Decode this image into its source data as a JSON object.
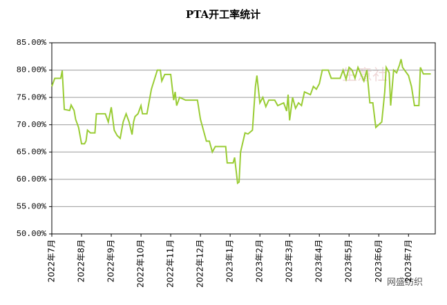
{
  "chart_data": {
    "type": "line",
    "title": "PTA开工率统计",
    "watermark": "网盛纺织",
    "logo_text": "生意社",
    "xlim": [
      0,
      12.9
    ],
    "xticks": [
      {
        "value": 0,
        "label": "2022年7月"
      },
      {
        "value": 1,
        "label": "2022年8月"
      },
      {
        "value": 2,
        "label": "2022年9月"
      },
      {
        "value": 3,
        "label": "2022年10月"
      },
      {
        "value": 4,
        "label": "2022年11月"
      },
      {
        "value": 5,
        "label": "2022年12月"
      },
      {
        "value": 6,
        "label": "2023年1月"
      },
      {
        "value": 7,
        "label": "2023年2月"
      },
      {
        "value": 8,
        "label": "2023年3月"
      },
      {
        "value": 9,
        "label": "2023年4月"
      },
      {
        "value": 10,
        "label": "2023年5月"
      },
      {
        "value": 11,
        "label": "2023年6月"
      },
      {
        "value": 12,
        "label": "2023年7月"
      }
    ],
    "ylim": [
      50,
      85
    ],
    "yticks": [
      {
        "value": 50,
        "label": "50.00%"
      },
      {
        "value": 55,
        "label": "55.00%"
      },
      {
        "value": 60,
        "label": "60.00%"
      },
      {
        "value": 65,
        "label": "65.00%"
      },
      {
        "value": 70,
        "label": "70.00%"
      },
      {
        "value": 75,
        "label": "75.00%"
      },
      {
        "value": 80,
        "label": "80.00%"
      },
      {
        "value": 85,
        "label": "85.00%"
      }
    ],
    "grid": true,
    "x": [
      0,
      0.1,
      0.3,
      0.35,
      0.42,
      0.6,
      0.65,
      0.75,
      0.8,
      0.9,
      1.0,
      1.1,
      1.15,
      1.2,
      1.3,
      1.45,
      1.5,
      1.8,
      1.9,
      2.0,
      2.1,
      2.2,
      2.3,
      2.4,
      2.5,
      2.6,
      2.7,
      2.75,
      2.8,
      2.9,
      3.0,
      3.05,
      3.2,
      3.35,
      3.55,
      3.65,
      3.7,
      3.8,
      4.0,
      4.1,
      4.15,
      4.2,
      4.3,
      4.5,
      4.9,
      5.0,
      5.1,
      5.2,
      5.3,
      5.4,
      5.5,
      5.85,
      5.9,
      6.1,
      6.15,
      6.25,
      6.3,
      6.35,
      6.5,
      6.6,
      6.75,
      6.85,
      6.9,
      7.0,
      7.1,
      7.2,
      7.3,
      7.5,
      7.6,
      7.8,
      7.9,
      7.95,
      8.0,
      8.1,
      8.2,
      8.3,
      8.4,
      8.5,
      8.7,
      8.8,
      8.9,
      9.0,
      9.1,
      9.3,
      9.4,
      9.7,
      9.8,
      9.9,
      10.0,
      10.1,
      10.2,
      10.3,
      10.5,
      10.6,
      10.7,
      10.8,
      10.9,
      11.1,
      11.2,
      11.25,
      11.35,
      11.4,
      11.5,
      11.6,
      11.7,
      11.75,
      11.8,
      12.0,
      12.1,
      12.2,
      12.35,
      12.4,
      12.5,
      12.75
    ],
    "series": [
      {
        "color": "#99cc33",
        "values": [
          77,
          78.5,
          78.5,
          79.9,
          72.8,
          72.6,
          73.6,
          72.6,
          71,
          69.5,
          66.5,
          66.5,
          67,
          69,
          68.5,
          68.5,
          72,
          72,
          70.5,
          73.2,
          69,
          68,
          67.5,
          70.5,
          72,
          70.5,
          68.2,
          70.5,
          71.5,
          72,
          73.5,
          72,
          72,
          76.5,
          80,
          80,
          78,
          79.2,
          79.2,
          74.5,
          76,
          73.5,
          75,
          74.5,
          74.5,
          71,
          69,
          67,
          67,
          65,
          66,
          66,
          63,
          63,
          64,
          59.3,
          59.5,
          65,
          68.5,
          68.3,
          69,
          77,
          79,
          74,
          75,
          73.3,
          74.5,
          74.5,
          73.5,
          74,
          72.5,
          75.5,
          70.8,
          75,
          73,
          74,
          73.5,
          76,
          75.5,
          77,
          76.5,
          77.5,
          80,
          80,
          78.5,
          78.5,
          80,
          78.3,
          80.5,
          80,
          78.5,
          80.5,
          78,
          80,
          74,
          74,
          69.5,
          70.5,
          76,
          80.5,
          79.5,
          73.5,
          80,
          79.5,
          81,
          82,
          80.5,
          79,
          77,
          73.5,
          73.5,
          80.5,
          79.3,
          79.3
        ]
      }
    ]
  }
}
